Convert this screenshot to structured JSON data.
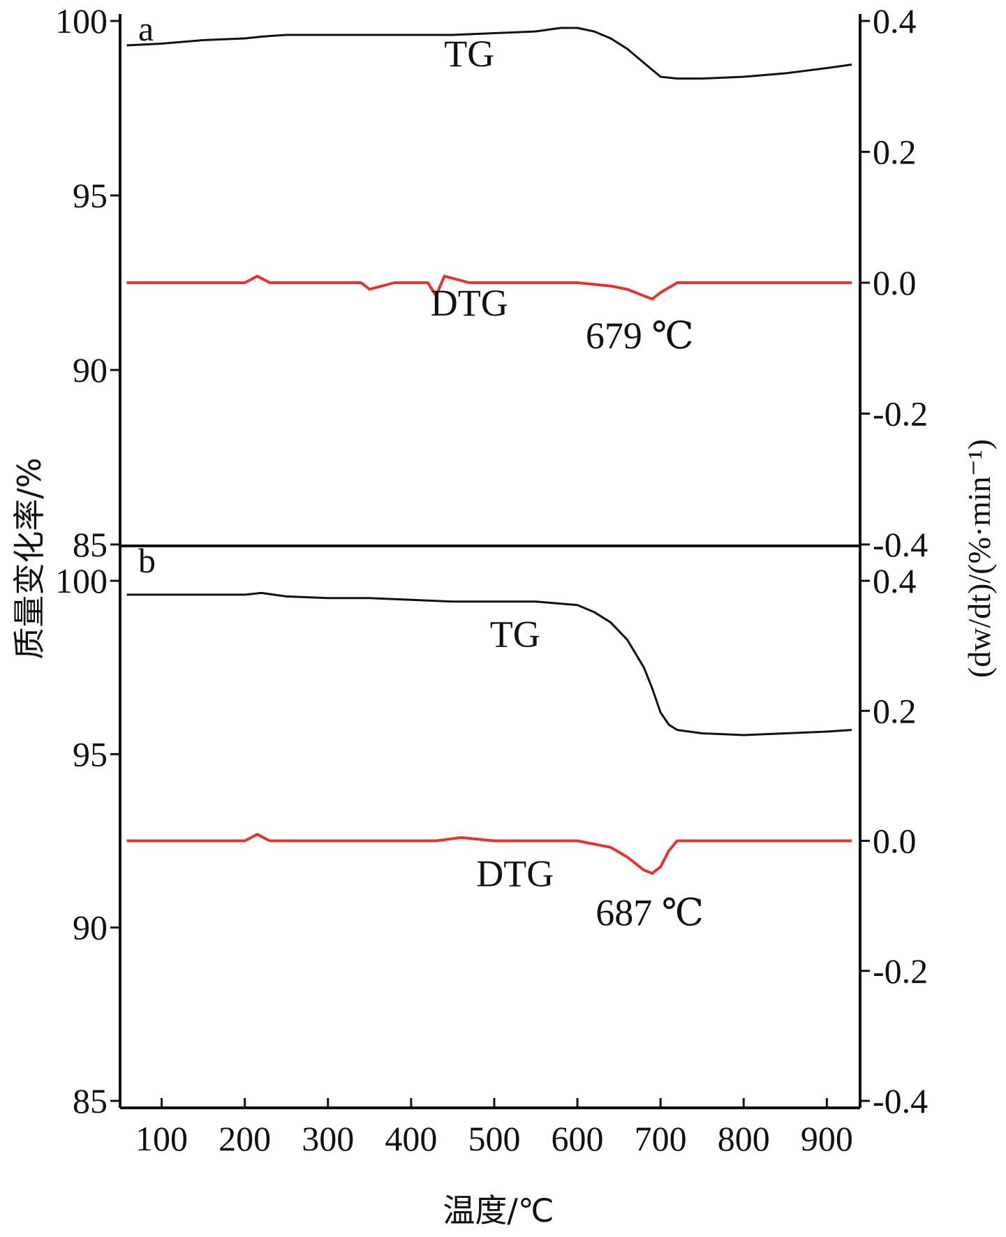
{
  "chart_data": {
    "type": "line",
    "xlabel": "温度/℃",
    "ylabel_left": "质量变化率/%",
    "ylabel_right": "(dw/dt)/(%·min⁻¹)",
    "xlim": [
      50,
      940
    ],
    "xticks": [
      100,
      200,
      300,
      400,
      500,
      600,
      700,
      800,
      900
    ],
    "x_tick_labels": [
      "100",
      "200",
      "300",
      "400",
      "500",
      "600",
      "700",
      "800",
      "900"
    ],
    "panels": [
      {
        "label": "a",
        "ylim_left": [
          85,
          100
        ],
        "yticks_left": [
          85,
          90,
          95,
          100
        ],
        "ytick_labels_left": [
          "85",
          "90",
          "95",
          "100"
        ],
        "ylim_right": [
          -0.4,
          0.4
        ],
        "yticks_right": [
          -0.4,
          -0.2,
          0.0,
          0.2,
          0.4
        ],
        "ytick_labels_right": [
          "-0.4",
          "-0.2",
          "0.0",
          "0.2",
          "0.4"
        ],
        "series": [
          {
            "name": "TG",
            "axis": "left",
            "color": "#111111",
            "x": [
              58,
              100,
              150,
              200,
              220,
              250,
              300,
              350,
              400,
              450,
              500,
              550,
              580,
              600,
              620,
              640,
              660,
              680,
              700,
              720,
              750,
              800,
              850,
              900,
              930
            ],
            "y": [
              99.3,
              99.35,
              99.45,
              99.5,
              99.55,
              99.6,
              99.6,
              99.6,
              99.6,
              99.6,
              99.65,
              99.7,
              99.8,
              99.8,
              99.7,
              99.5,
              99.2,
              98.8,
              98.4,
              98.35,
              98.35,
              98.4,
              98.5,
              98.65,
              98.75
            ]
          },
          {
            "name": "DTG",
            "axis": "right",
            "color": "#e8322d",
            "x": [
              58,
              100,
              150,
              200,
              215,
              230,
              260,
              300,
              340,
              350,
              380,
              420,
              430,
              440,
              470,
              500,
              550,
              600,
              640,
              660,
              680,
              690,
              700,
              720,
              750,
              800,
              850,
              900,
              930
            ],
            "y": [
              0.0,
              0.0,
              0.0,
              0.0,
              0.01,
              0.0,
              0.0,
              0.0,
              0.0,
              -0.01,
              0.0,
              0.0,
              -0.02,
              0.01,
              0.0,
              0.0,
              0.0,
              0.0,
              -0.005,
              -0.01,
              -0.02,
              -0.025,
              -0.015,
              0.0,
              0.0,
              0.0,
              0.0,
              0.0,
              0.0
            ]
          }
        ],
        "annotations": [
          {
            "text": "TG",
            "x": 470,
            "y": 98.7,
            "axis": "left"
          },
          {
            "text": "DTG",
            "x": 470,
            "y": -0.05,
            "axis": "right"
          },
          {
            "text": "679 ℃",
            "x": 675,
            "y": -0.1,
            "axis": "right"
          }
        ]
      },
      {
        "label": "b",
        "ylim_left": [
          85,
          100
        ],
        "yticks_left": [
          85,
          90,
          95,
          100
        ],
        "ytick_labels_left": [
          "85",
          "90",
          "95",
          "100"
        ],
        "ylim_right": [
          -0.4,
          0.4
        ],
        "yticks_right": [
          -0.4,
          -0.2,
          0.0,
          0.2,
          0.4
        ],
        "ytick_labels_right": [
          "-0.4",
          "-0.2",
          "0.0",
          "0.2",
          "0.4"
        ],
        "series": [
          {
            "name": "TG",
            "axis": "left",
            "color": "#111111",
            "x": [
              58,
              100,
              150,
              200,
              220,
              250,
              300,
              350,
              400,
              450,
              500,
              550,
              600,
              620,
              640,
              660,
              680,
              690,
              700,
              710,
              720,
              750,
              800,
              850,
              900,
              930
            ],
            "y": [
              99.6,
              99.6,
              99.6,
              99.6,
              99.65,
              99.55,
              99.5,
              99.5,
              99.45,
              99.4,
              99.4,
              99.4,
              99.3,
              99.1,
              98.8,
              98.3,
              97.5,
              96.9,
              96.2,
              95.85,
              95.7,
              95.6,
              95.55,
              95.6,
              95.65,
              95.7
            ]
          },
          {
            "name": "DTG",
            "axis": "right",
            "color": "#e8322d",
            "x": [
              58,
              100,
              150,
              200,
              215,
              230,
              260,
              300,
              350,
              400,
              430,
              460,
              500,
              550,
              600,
              620,
              640,
              660,
              670,
              680,
              690,
              700,
              710,
              720,
              750,
              800,
              850,
              900,
              930
            ],
            "y": [
              0.0,
              0.0,
              0.0,
              0.0,
              0.01,
              0.0,
              0.0,
              0.0,
              0.0,
              0.0,
              0.0,
              0.005,
              0.0,
              0.0,
              0.0,
              -0.005,
              -0.01,
              -0.025,
              -0.035,
              -0.045,
              -0.05,
              -0.04,
              -0.015,
              0.0,
              0.0,
              0.0,
              0.0,
              0.0,
              0.0
            ]
          }
        ],
        "annotations": [
          {
            "text": "TG",
            "x": 525,
            "y": 98.1,
            "axis": "left"
          },
          {
            "text": "DTG",
            "x": 525,
            "y": -0.07,
            "axis": "right"
          },
          {
            "text": "687 ℃",
            "x": 687,
            "y": -0.13,
            "axis": "right"
          }
        ]
      }
    ]
  }
}
